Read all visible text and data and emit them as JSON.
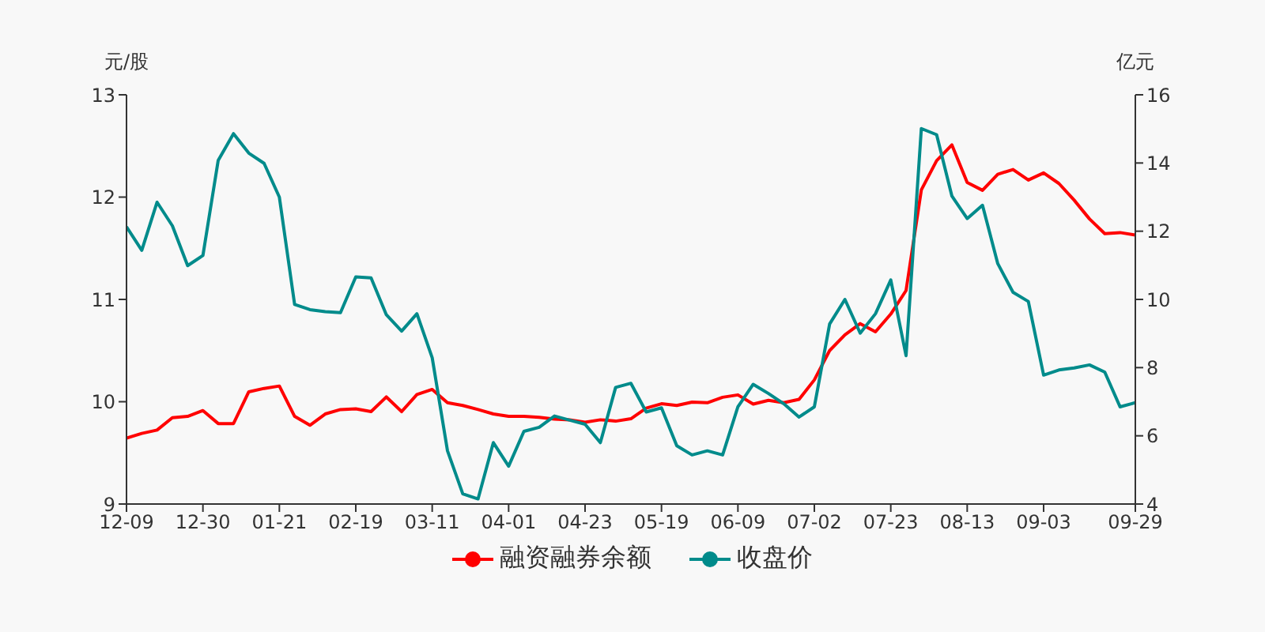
{
  "chart_data": {
    "type": "line",
    "ylabel": "元/股",
    "y2label": "亿元",
    "categories": [
      "12-09",
      null,
      null,
      null,
      null,
      "12-30",
      null,
      null,
      null,
      null,
      "01-21",
      null,
      null,
      null,
      null,
      "02-19",
      null,
      null,
      null,
      null,
      "03-11",
      null,
      null,
      null,
      null,
      "04-01",
      null,
      null,
      null,
      null,
      "04-23",
      null,
      null,
      null,
      null,
      "05-19",
      null,
      null,
      null,
      null,
      "06-09",
      null,
      null,
      null,
      null,
      "07-02",
      null,
      null,
      null,
      null,
      "07-23",
      null,
      null,
      null,
      null,
      "08-13",
      null,
      null,
      null,
      null,
      "09-03",
      null,
      null,
      null,
      null,
      null,
      "09-29"
    ],
    "series": [
      {
        "name": "融资融券余额",
        "color": "#ff0000",
        "axis": "y2",
        "values": [
          5.93,
          6.07,
          6.17,
          6.53,
          6.57,
          6.74,
          6.36,
          6.36,
          7.29,
          7.39,
          7.46,
          6.57,
          6.31,
          6.64,
          6.77,
          6.79,
          6.71,
          7.14,
          6.71,
          7.21,
          7.36,
          6.97,
          6.89,
          6.77,
          6.64,
          6.57,
          6.57,
          6.54,
          6.49,
          6.47,
          6.4,
          6.47,
          6.43,
          6.5,
          6.81,
          6.94,
          6.89,
          6.99,
          6.97,
          7.13,
          7.2,
          6.93,
          7.04,
          6.97,
          7.07,
          7.64,
          8.5,
          8.96,
          9.29,
          9.05,
          9.57,
          10.26,
          13.21,
          14.07,
          14.53,
          13.43,
          13.2,
          13.67,
          13.81,
          13.5,
          13.71,
          13.4,
          12.91,
          12.36,
          11.93,
          11.96,
          11.89
        ]
      },
      {
        "name": "收盘价",
        "color": "#008b8b",
        "values": [
          11.71,
          11.48,
          11.95,
          11.72,
          11.33,
          11.43,
          12.36,
          12.62,
          12.43,
          12.33,
          12.0,
          10.95,
          10.9,
          10.88,
          10.87,
          11.22,
          11.21,
          10.85,
          10.69,
          10.86,
          10.43,
          9.52,
          9.1,
          9.05,
          9.6,
          9.37,
          9.71,
          9.75,
          9.86,
          9.82,
          9.78,
          9.6,
          10.14,
          10.18,
          9.9,
          9.94,
          9.57,
          9.48,
          9.52,
          9.48,
          9.95,
          10.17,
          10.08,
          9.98,
          9.85,
          9.95,
          10.76,
          11.0,
          10.67,
          10.86,
          11.19,
          10.45,
          12.67,
          12.61,
          12.01,
          11.79,
          11.92,
          11.35,
          11.07,
          10.98,
          10.26,
          10.31,
          10.33,
          10.36,
          10.29,
          9.95,
          9.99
        ]
      }
    ],
    "ylim": [
      9,
      13
    ],
    "yticks": [
      9,
      10,
      11,
      12,
      13
    ],
    "y2lim": [
      4,
      16
    ],
    "y2ticks": [
      4,
      6,
      8,
      10,
      12,
      14,
      16
    ],
    "grid": false,
    "legend": "bottom",
    "marker": "none",
    "line_style": "solid"
  }
}
